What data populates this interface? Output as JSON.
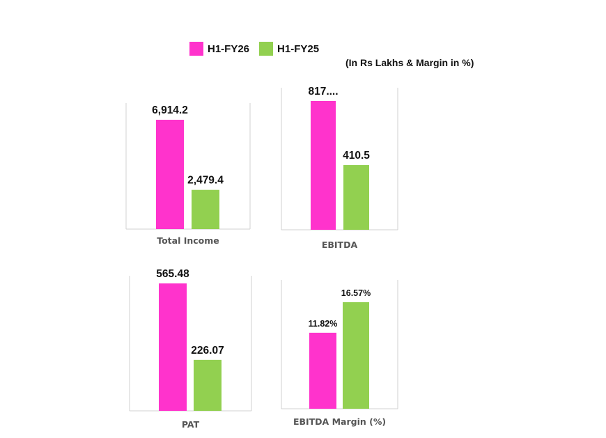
{
  "legend": {
    "items": [
      {
        "label": "H1-FY26",
        "color": "#FF33CC"
      },
      {
        "label": "H1-FY25",
        "color": "#92D050"
      }
    ]
  },
  "unit_note": "(In Rs Lakhs & Margin in %)",
  "chart_data": [
    {
      "type": "bar",
      "xlabel": "Total Income",
      "series": [
        {
          "name": "H1-FY26",
          "values": [
            6914.2
          ]
        },
        {
          "name": "H1-FY25",
          "values": [
            2479.4
          ]
        }
      ],
      "data_labels": [
        "6,914.2",
        "2,479.4"
      ],
      "grid": false
    },
    {
      "type": "bar",
      "xlabel": "EBITDA",
      "series": [
        {
          "name": "H1-FY26",
          "values": [
            817
          ]
        },
        {
          "name": "H1-FY25",
          "values": [
            410.5
          ]
        }
      ],
      "data_labels": [
        "817....",
        "410.5"
      ],
      "grid": false
    },
    {
      "type": "bar",
      "xlabel": "PAT",
      "series": [
        {
          "name": "H1-FY26",
          "values": [
            565.48
          ]
        },
        {
          "name": "H1-FY25",
          "values": [
            226.07
          ]
        }
      ],
      "data_labels": [
        "565.48",
        "226.07"
      ],
      "grid": false
    },
    {
      "type": "bar",
      "xlabel": "EBITDA Margin (%)",
      "series": [
        {
          "name": "H1-FY26",
          "values": [
            11.82
          ]
        },
        {
          "name": "H1-FY25",
          "values": [
            16.57
          ]
        }
      ],
      "data_labels": [
        "11.82%",
        "16.57%"
      ],
      "grid": false
    }
  ]
}
